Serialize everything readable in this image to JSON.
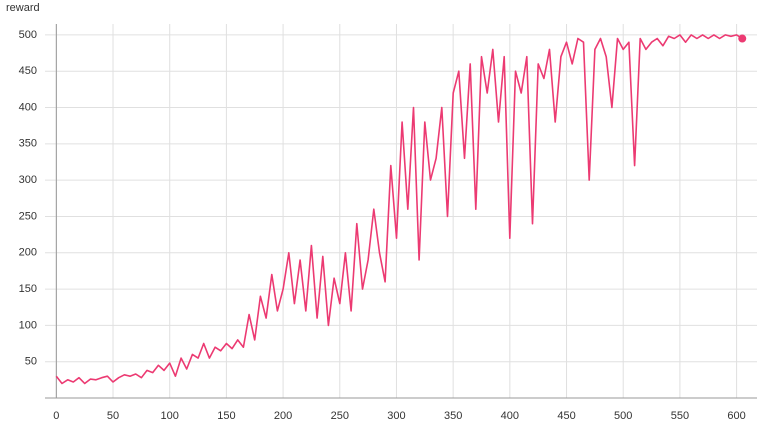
{
  "chart_data": {
    "type": "line",
    "title": "reward",
    "x": [
      0,
      5,
      10,
      15,
      20,
      25,
      30,
      35,
      40,
      45,
      50,
      55,
      60,
      65,
      70,
      75,
      80,
      85,
      90,
      95,
      100,
      105,
      110,
      115,
      120,
      125,
      130,
      135,
      140,
      145,
      150,
      155,
      160,
      165,
      170,
      175,
      180,
      185,
      190,
      195,
      200,
      205,
      210,
      215,
      220,
      225,
      230,
      235,
      240,
      245,
      250,
      255,
      260,
      265,
      270,
      275,
      280,
      285,
      290,
      295,
      300,
      305,
      310,
      315,
      320,
      325,
      330,
      335,
      340,
      345,
      350,
      355,
      360,
      365,
      370,
      375,
      380,
      385,
      390,
      395,
      400,
      405,
      410,
      415,
      420,
      425,
      430,
      435,
      440,
      445,
      450,
      455,
      460,
      465,
      470,
      475,
      480,
      485,
      490,
      495,
      500,
      505,
      510,
      515,
      520,
      525,
      530,
      535,
      540,
      545,
      550,
      555,
      560,
      565,
      570,
      575,
      580,
      585,
      590,
      595,
      600,
      605
    ],
    "series": [
      {
        "name": "reward",
        "color": "#ec3a72",
        "values": [
          30,
          20,
          25,
          22,
          28,
          20,
          26,
          25,
          28,
          30,
          22,
          28,
          32,
          30,
          33,
          28,
          38,
          35,
          45,
          38,
          48,
          30,
          55,
          40,
          60,
          55,
          75,
          55,
          70,
          65,
          75,
          68,
          80,
          70,
          115,
          80,
          140,
          110,
          170,
          120,
          150,
          200,
          130,
          190,
          120,
          210,
          110,
          195,
          100,
          165,
          130,
          200,
          120,
          240,
          150,
          190,
          260,
          200,
          160,
          320,
          220,
          380,
          260,
          400,
          190,
          380,
          300,
          330,
          400,
          250,
          420,
          450,
          330,
          460,
          260,
          470,
          420,
          480,
          380,
          470,
          220,
          450,
          420,
          470,
          240,
          460,
          440,
          480,
          380,
          470,
          490,
          460,
          495,
          490,
          300,
          480,
          495,
          470,
          400,
          495,
          480,
          490,
          320,
          495,
          480,
          490,
          495,
          485,
          498,
          495,
          500,
          490,
          500,
          495,
          500,
          495,
          500,
          495,
          500,
          498,
          500,
          495
        ]
      }
    ],
    "xlim": [
      -10,
      618
    ],
    "ylim": [
      0,
      515
    ],
    "xticks": [
      0,
      50,
      100,
      150,
      200,
      250,
      300,
      350,
      400,
      450,
      500,
      550,
      600
    ],
    "yticks": [
      50,
      100,
      150,
      200,
      250,
      300,
      350,
      400,
      450,
      500
    ],
    "grid": true
  }
}
